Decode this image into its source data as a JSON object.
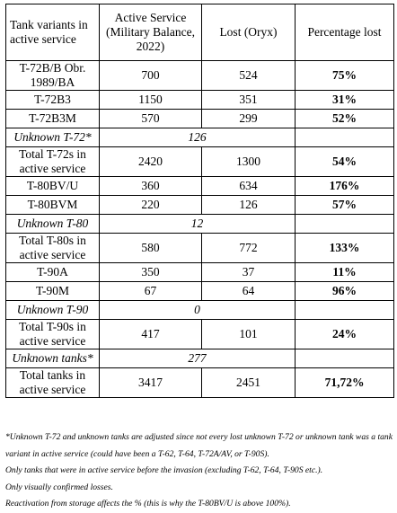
{
  "headers": [
    "Tank variants in active service",
    "Active Service (Military Balance, 2022)",
    "Lost (Oryx)",
    "Percentage lost"
  ],
  "rows": [
    {
      "name": "T-72B/B Obr. 1989/BA",
      "active": "700",
      "lost": "524",
      "pct": "75%",
      "type": "normal",
      "lines": 2
    },
    {
      "name": "T-72B3",
      "active": "1150",
      "lost": "351",
      "pct": "31%",
      "type": "normal",
      "lines": 1
    },
    {
      "name": "T-72B3M",
      "active": "570",
      "lost": "299",
      "pct": "52%",
      "type": "normal",
      "lines": 1
    },
    {
      "name": "Unknown T-72*",
      "active": "",
      "lost": "126",
      "pct": "",
      "type": "unknown",
      "lines": 1
    },
    {
      "name": "Total T-72s in active service",
      "active": "2420",
      "lost": "1300",
      "pct": "54%",
      "type": "total",
      "lines": 2
    },
    {
      "name": "T-80BV/U",
      "active": "360",
      "lost": "634",
      "pct": "176%",
      "type": "normal",
      "lines": 1
    },
    {
      "name": "T-80BVM",
      "active": "220",
      "lost": "126",
      "pct": "57%",
      "type": "normal",
      "lines": 1
    },
    {
      "name": "Unknown T-80",
      "active": "",
      "lost": "12",
      "pct": "",
      "type": "unknown",
      "lines": 1
    },
    {
      "name": "Total T-80s in active service",
      "active": "580",
      "lost": "772",
      "pct": "133%",
      "type": "total",
      "lines": 2
    },
    {
      "name": "T-90A",
      "active": "350",
      "lost": "37",
      "pct": "11%",
      "type": "normal",
      "lines": 1
    },
    {
      "name": "T-90M",
      "active": "67",
      "lost": "64",
      "pct": "96%",
      "type": "normal",
      "lines": 1
    },
    {
      "name": "Unknown T-90",
      "active": "",
      "lost": "0",
      "pct": "",
      "type": "unknown",
      "lines": 1
    },
    {
      "name": "Total T-90s in active service",
      "active": "417",
      "lost": "101",
      "pct": "24%",
      "type": "total",
      "lines": 2
    },
    {
      "name": "Unknown tanks*",
      "active": "",
      "lost": "277",
      "pct": "",
      "type": "unknown",
      "lines": 1
    },
    {
      "name": "Total tanks in active service",
      "active": "3417",
      "lost": "2451",
      "pct": "71,72%",
      "type": "total",
      "lines": 2
    }
  ],
  "notes": [
    "*Unknown T-72 and unknown tanks are adjusted since not every lost unknown T-72 or unknown tank was a tank variant in active service (could have been a T-62, T-64, T-72A/AV, or T-90S).",
    "Only tanks that were in active service before the invasion (excluding T-62, T-64, T-90S etc.).",
    "Only visually confirmed losses.",
    "Reactivation from storage affects the % (this is why the T-80BV/U is above 100%)."
  ]
}
